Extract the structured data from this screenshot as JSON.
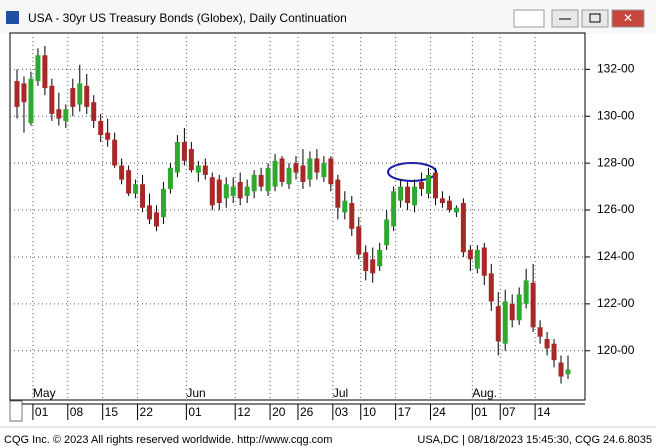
{
  "chart_data": {
    "type": "candlestick",
    "title": "USA - 30yr US Treasury Bonds (Globex), Daily Continuation",
    "categories": [
      null,
      null,
      null,
      "01",
      null,
      null,
      null,
      null,
      "08",
      null,
      null,
      null,
      null,
      "15",
      null,
      null,
      null,
      null,
      "22",
      null,
      null,
      null,
      null,
      null,
      null,
      "01",
      null,
      null,
      null,
      null,
      null,
      null,
      "12",
      null,
      null,
      null,
      null,
      "20",
      null,
      null,
      null,
      "26",
      null,
      null,
      null,
      null,
      "03",
      null,
      null,
      null,
      "10",
      null,
      null,
      null,
      null,
      "17",
      null,
      null,
      null,
      null,
      "24",
      null,
      null,
      null,
      null,
      null,
      "01",
      null,
      null,
      null,
      "07",
      null,
      null,
      null,
      null,
      "14",
      null,
      null,
      null,
      null
    ],
    "months": [
      null,
      null,
      null,
      "May",
      null,
      null,
      null,
      null,
      null,
      null,
      null,
      null,
      null,
      null,
      null,
      null,
      null,
      null,
      null,
      null,
      null,
      null,
      null,
      null,
      null,
      "Jun",
      null,
      null,
      null,
      null,
      null,
      null,
      null,
      null,
      null,
      null,
      null,
      null,
      null,
      null,
      null,
      null,
      null,
      null,
      null,
      null,
      "Jul",
      null,
      null,
      null,
      null,
      null,
      null,
      null,
      null,
      null,
      null,
      null,
      null,
      null,
      null,
      null,
      null,
      null,
      null,
      null,
      "Aug.",
      null,
      null,
      null,
      null,
      null,
      null,
      null,
      null,
      null,
      null,
      null,
      null,
      null
    ],
    "open": [
      131.5,
      131.4,
      129.7,
      131.5,
      132.6,
      131.3,
      130.3,
      129.8,
      131.2,
      130.5,
      131.3,
      130.6,
      129.8,
      129.3,
      129.0,
      127.9,
      127.7,
      126.7,
      127.1,
      126.2,
      125.9,
      125.7,
      126.9,
      127.6,
      128.9,
      128.6,
      127.6,
      127.9,
      127.4,
      127.3,
      126.5,
      126.6,
      127.2,
      126.6,
      126.8,
      127.5,
      126.8,
      127.0,
      128.2,
      127.1,
      128.0,
      127.9,
      127.3,
      128.2,
      127.4,
      128.2,
      127.3,
      125.9,
      126.3,
      125.3,
      124.2,
      123.9,
      123.6,
      124.5,
      125.3,
      126.4,
      127.0,
      126.2,
      127.2,
      126.7,
      127.6,
      126.5,
      126.4,
      125.9,
      126.3,
      124.3,
      123.5,
      124.4,
      123.3,
      121.9,
      120.3,
      122.0,
      121.3,
      122.0,
      122.9,
      121.0,
      120.5,
      120.3,
      119.5,
      119.0
    ],
    "high": [
      132.0,
      131.7,
      131.9,
      132.9,
      133.0,
      131.6,
      131.0,
      130.5,
      131.6,
      132.2,
      131.8,
      130.9,
      130.1,
      129.9,
      129.3,
      128.2,
      127.9,
      127.3,
      127.5,
      126.7,
      126.2,
      127.2,
      128.0,
      129.2,
      129.5,
      128.9,
      128.1,
      128.2,
      127.6,
      127.5,
      127.4,
      127.4,
      127.6,
      127.3,
      127.7,
      127.8,
      128.0,
      128.4,
      128.3,
      128.0,
      128.3,
      128.6,
      128.5,
      128.6,
      128.3,
      128.3,
      127.5,
      126.8,
      126.6,
      125.7,
      124.5,
      124.4,
      124.6,
      126.0,
      127.0,
      127.3,
      127.2,
      127.3,
      127.6,
      127.8,
      127.8,
      126.8,
      126.6,
      126.2,
      126.5,
      124.5,
      124.5,
      124.6,
      123.7,
      122.5,
      122.6,
      122.4,
      122.7,
      123.5,
      123.7,
      121.3,
      120.8,
      120.5,
      119.8,
      119.8
    ],
    "low": [
      129.9,
      129.3,
      129.6,
      131.3,
      130.9,
      129.8,
      129.6,
      129.5,
      130.0,
      130.2,
      130.1,
      129.5,
      128.9,
      128.7,
      127.8,
      127.1,
      126.6,
      126.5,
      125.9,
      125.4,
      125.1,
      125.4,
      126.7,
      127.4,
      127.9,
      127.6,
      127.2,
      127.3,
      126.0,
      126.0,
      126.1,
      126.3,
      126.2,
      126.3,
      126.5,
      126.8,
      126.6,
      126.8,
      127.0,
      126.9,
      127.3,
      126.9,
      127.0,
      127.3,
      127.2,
      126.8,
      125.6,
      125.6,
      124.9,
      123.9,
      123.0,
      122.9,
      123.4,
      124.3,
      125.1,
      126.1,
      126.0,
      125.9,
      126.6,
      126.5,
      126.2,
      126.1,
      125.9,
      125.7,
      124.0,
      123.4,
      123.3,
      122.8,
      121.7,
      119.8,
      120.0,
      121.0,
      121.1,
      121.8,
      120.8,
      120.3,
      119.8,
      119.3,
      118.6,
      118.8
    ],
    "close": [
      130.4,
      130.6,
      131.6,
      132.6,
      131.2,
      130.1,
      129.9,
      130.3,
      130.4,
      131.4,
      130.4,
      129.8,
      129.2,
      129.0,
      127.9,
      127.3,
      126.7,
      127.1,
      126.1,
      125.6,
      125.3,
      126.9,
      127.8,
      128.9,
      128.1,
      127.7,
      127.9,
      127.5,
      126.2,
      126.3,
      127.1,
      127.0,
      126.5,
      127.0,
      127.5,
      127.0,
      127.8,
      128.1,
      127.2,
      127.8,
      127.6,
      127.2,
      128.2,
      127.6,
      128.0,
      127.1,
      126.1,
      126.4,
      125.2,
      124.1,
      123.4,
      123.3,
      124.3,
      125.6,
      126.8,
      127.0,
      126.3,
      127.0,
      126.9,
      127.5,
      126.5,
      126.3,
      126.0,
      126.1,
      124.2,
      123.9,
      124.3,
      123.2,
      122.1,
      120.4,
      122.1,
      121.3,
      122.4,
      123.0,
      121.0,
      120.6,
      120.1,
      119.6,
      118.9,
      119.2
    ],
    "up_color": "#2fa82f",
    "down_color": "#a82828",
    "ylim": [
      117.9,
      133.55
    ],
    "yticks": [
      {
        "value": 120,
        "label": "120-00"
      },
      {
        "value": 122,
        "label": "122-00"
      },
      {
        "value": 124,
        "label": "124-00"
      },
      {
        "value": 126,
        "label": "126-00"
      },
      {
        "value": 128,
        "label": "128-00"
      },
      {
        "value": 130,
        "label": "130-00"
      },
      {
        "value": 132,
        "label": "132-00"
      }
    ],
    "grid": true
  },
  "footer": {
    "left": "CQG Inc. © 2023 All rights reserved worldwide. http://www.cqg.com",
    "right": "USA,DC | 08/18/2023 15:45:30, CQG 24.6.8035"
  }
}
